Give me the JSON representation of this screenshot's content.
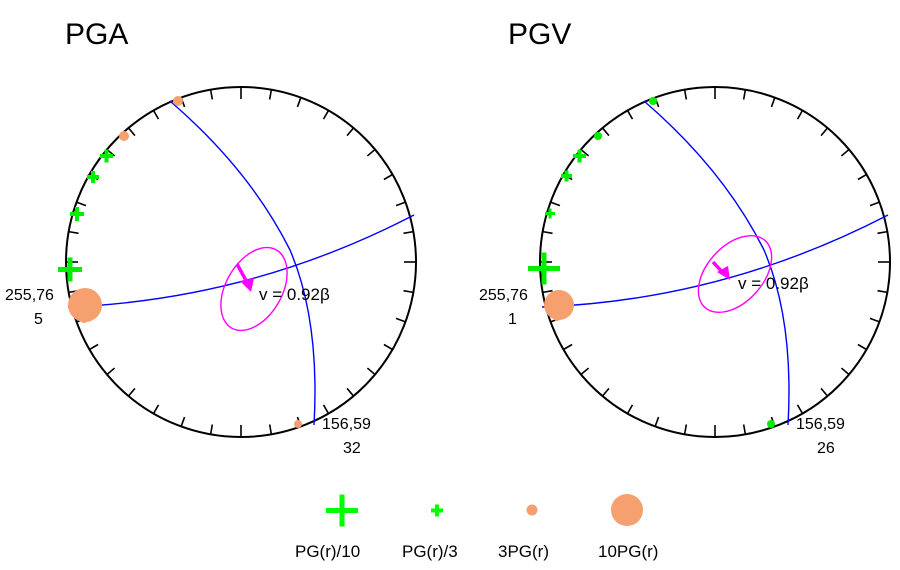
{
  "colors": {
    "circle": "#000000",
    "plane": "#0000ff",
    "ellipse": "#ff00ff",
    "arrow": "#ff00ff",
    "plus": "#00ff00",
    "dot_orange": "#f5a06e",
    "dot_green": "#00ee00"
  },
  "panels": [
    {
      "title": "PGA",
      "velocity_label": "v = 0.92β",
      "plane1_label": "255,76",
      "plane1_value": "5",
      "plane2_label": "156,59",
      "plane2_value": "32"
    },
    {
      "title": "PGV",
      "velocity_label": "v = 0.92β",
      "plane1_label": "255,76",
      "plane1_value": "1",
      "plane2_label": "156,59",
      "plane2_value": "26"
    }
  ],
  "legend": [
    {
      "label": "PG(r)/10",
      "symbol": "large-plus"
    },
    {
      "label": "PG(r)/3",
      "symbol": "small-plus"
    },
    {
      "label": "3PG(r)",
      "symbol": "small-dot"
    },
    {
      "label": "10PG(r)",
      "symbol": "large-dot"
    }
  ]
}
